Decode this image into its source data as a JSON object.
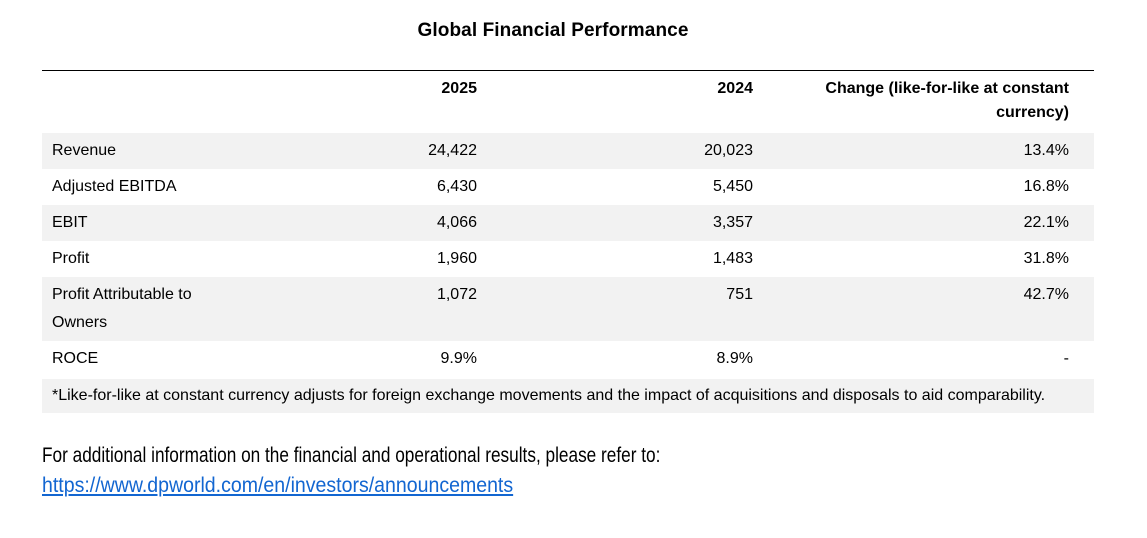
{
  "title": "Global Financial Performance",
  "table": {
    "columns": {
      "metric": "",
      "year_2025": "2025",
      "year_2024": "2024",
      "change": "Change (like-for-like at constant currency)"
    },
    "rows": [
      {
        "label": "Revenue",
        "y2025": "24,422",
        "y2024": "20,023",
        "change": "13.4%"
      },
      {
        "label": "Adjusted EBITDA",
        "y2025": "6,430",
        "y2024": "5,450",
        "change": "16.8%"
      },
      {
        "label": "EBIT",
        "y2025": "4,066",
        "y2024": "3,357",
        "change": "22.1%"
      },
      {
        "label": "Profit",
        "y2025": "1,960",
        "y2024": "1,483",
        "change": "31.8%"
      },
      {
        "label": "Profit Attributable to Owners",
        "y2025": "1,072",
        "y2024": "751",
        "change": "42.7%"
      },
      {
        "label": "ROCE",
        "y2025": "9.9%",
        "y2024": "8.9%",
        "change": "-"
      }
    ],
    "footnote": "*Like-for-like at constant currency adjusts for foreign exchange movements and the impact of acquisitions and disposals to aid comparability."
  },
  "footer": {
    "text": "For additional information on the financial and operational results, please refer to:",
    "link": "https://www.dpworld.com/en/investors/announcements"
  },
  "colors": {
    "row_shading": "#f2f2f2",
    "link": "#1266d1",
    "text": "#000000",
    "table_top_border": "#000000"
  }
}
